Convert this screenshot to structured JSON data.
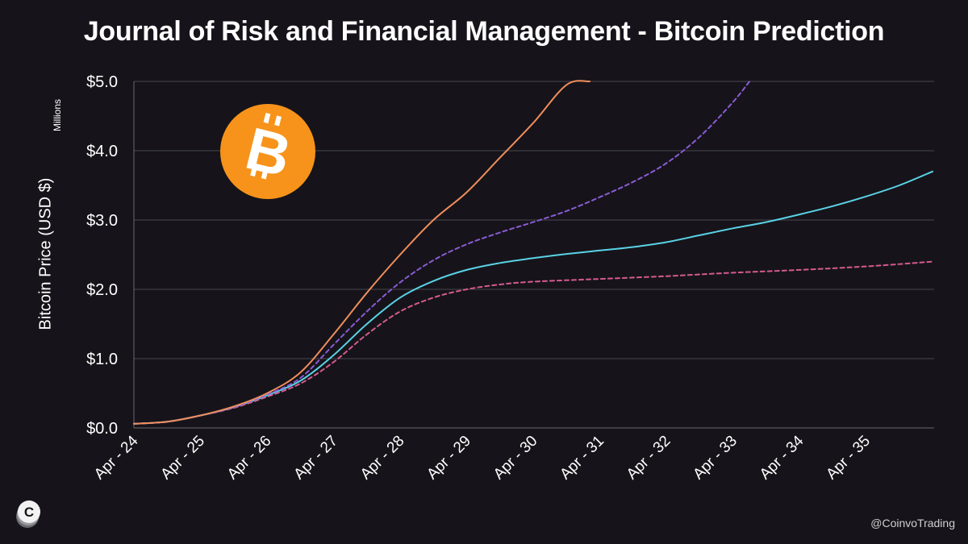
{
  "header": {
    "title": "Journal of Risk and Financial Management - Bitcoin Prediction"
  },
  "footer": {
    "handle": "@CoinvoTrading"
  },
  "icons": {
    "bitcoin": "bitcoin-icon",
    "brand": "coinvo-logo-icon"
  },
  "colors": {
    "background": "#16141a",
    "grid": "#4a4850",
    "bitcoin_orange": "#f7931a",
    "series_orange": "#f08d5c",
    "series_purple": "#8a5bd6",
    "series_cyan": "#5ad2e6",
    "series_pink": "#d45a8f"
  },
  "chart_data": {
    "type": "line",
    "title": "Journal of Risk and Financial Management - Bitcoin Prediction",
    "xlabel": "",
    "ylabel": "Bitcoin Price (USD $)",
    "y_units": "Millions",
    "ylim": [
      0,
      5
    ],
    "y_ticks": [
      0,
      1,
      2,
      3,
      4,
      5
    ],
    "y_tick_labels": [
      "$0.0",
      "$1.0",
      "$2.0",
      "$3.0",
      "$4.0",
      "$5.0"
    ],
    "categories": [
      "Apr - 24",
      "Apr - 25",
      "Apr - 26",
      "Apr - 27",
      "Apr - 28",
      "Apr - 29",
      "Apr - 30",
      "Apr - 31",
      "Apr - 32",
      "Apr - 33",
      "Apr - 34",
      "Apr - 35"
    ],
    "grid": true,
    "legend": "none",
    "series": [
      {
        "color": "#f08d5c",
        "dash": "solid",
        "x": [
          0,
          0.5,
          1,
          1.5,
          2,
          2.5,
          3,
          3.5,
          4,
          4.5,
          5,
          5.5,
          6,
          6.5,
          6.85
        ],
        "values": [
          0.06,
          0.09,
          0.18,
          0.31,
          0.5,
          0.8,
          1.35,
          1.95,
          2.5,
          3.0,
          3.4,
          3.9,
          4.4,
          4.95,
          5.0
        ]
      },
      {
        "color": "#8a5bd6",
        "dash": "dashed",
        "x": [
          0,
          0.5,
          1,
          1.5,
          2,
          2.5,
          3,
          3.5,
          4,
          4.5,
          5,
          5.5,
          6,
          6.5,
          7,
          7.5,
          8,
          8.5,
          9,
          9.25
        ],
        "values": [
          0.06,
          0.09,
          0.18,
          0.3,
          0.48,
          0.72,
          1.2,
          1.68,
          2.1,
          2.42,
          2.65,
          2.82,
          2.97,
          3.13,
          3.33,
          3.55,
          3.82,
          4.2,
          4.7,
          5.0
        ]
      },
      {
        "color": "#5ad2e6",
        "dash": "solid",
        "x": [
          0,
          0.5,
          1,
          1.5,
          2,
          2.5,
          3,
          3.5,
          4,
          4.5,
          5,
          5.5,
          6,
          6.5,
          7,
          7.5,
          8,
          8.5,
          9,
          9.5,
          10,
          10.5,
          11,
          11.5,
          12
        ],
        "values": [
          0.06,
          0.09,
          0.18,
          0.3,
          0.47,
          0.68,
          1.05,
          1.5,
          1.88,
          2.12,
          2.28,
          2.38,
          2.45,
          2.51,
          2.56,
          2.61,
          2.68,
          2.78,
          2.88,
          2.97,
          3.08,
          3.2,
          3.34,
          3.5,
          3.7
        ]
      },
      {
        "color": "#d45a8f",
        "dash": "dashed",
        "x": [
          0,
          0.5,
          1,
          1.5,
          2,
          2.5,
          3,
          3.5,
          4,
          4.5,
          5,
          5.5,
          6,
          7,
          8,
          9,
          10,
          11,
          12
        ],
        "values": [
          0.06,
          0.09,
          0.18,
          0.29,
          0.45,
          0.64,
          0.95,
          1.35,
          1.68,
          1.88,
          2.0,
          2.07,
          2.11,
          2.15,
          2.19,
          2.24,
          2.28,
          2.33,
          2.4
        ]
      }
    ]
  }
}
